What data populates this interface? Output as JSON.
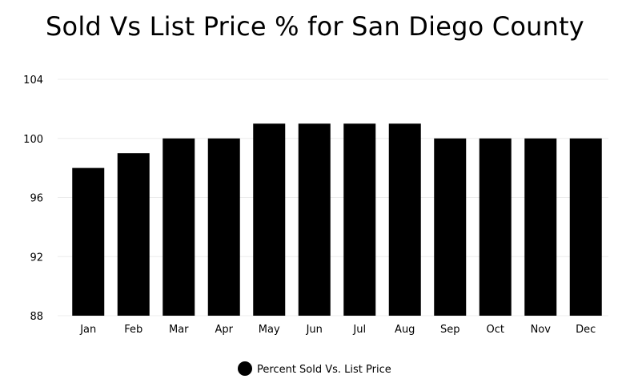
{
  "chart_data": {
    "type": "bar",
    "title": "Sold Vs List Price % for San Diego County",
    "categories": [
      "Jan",
      "Feb",
      "Mar",
      "Apr",
      "May",
      "Jun",
      "Jul",
      "Aug",
      "Sep",
      "Oct",
      "Nov",
      "Dec"
    ],
    "series": [
      {
        "name": "Percent Sold Vs. List Price",
        "values": [
          98,
          99,
          100,
          100,
          101,
          101,
          101,
          101,
          100,
          100,
          100,
          100
        ],
        "color": "#000000"
      }
    ],
    "yticks": [
      "88",
      "92",
      "96",
      "100",
      "104"
    ],
    "ylim": [
      88,
      104
    ],
    "grid": true,
    "legend_position": "bottom-center"
  }
}
